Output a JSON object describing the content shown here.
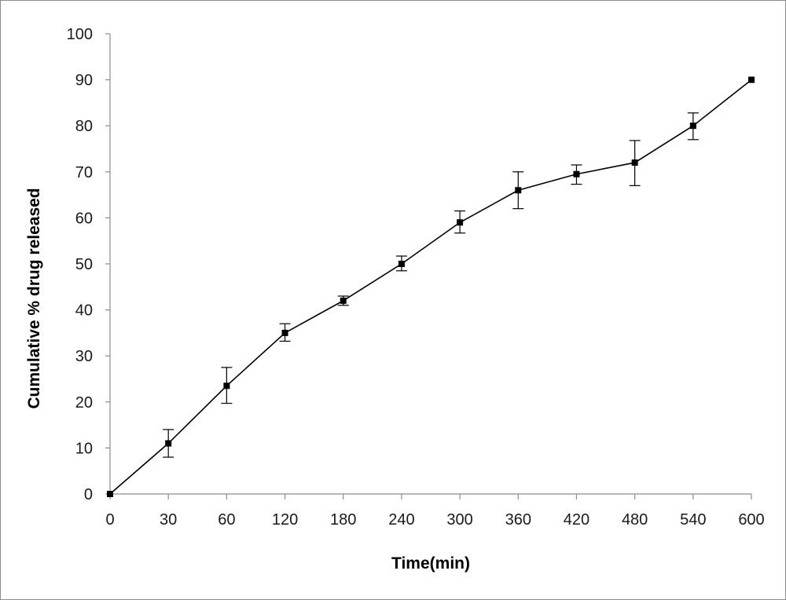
{
  "chart_data": {
    "type": "line",
    "title": "",
    "xlabel": "Time(min)",
    "ylabel": "Cumulative % drug released",
    "categories": [
      "0",
      "30",
      "60",
      "120",
      "180",
      "240",
      "300",
      "360",
      "420",
      "480",
      "540",
      "600"
    ],
    "y_ticks": [
      "0",
      "10",
      "20",
      "30",
      "40",
      "50",
      "60",
      "70",
      "80",
      "90",
      "100"
    ],
    "ylim": [
      0,
      100
    ],
    "grid": false,
    "legend": "none",
    "series": [
      {
        "values": [
          0,
          11,
          23.5,
          35,
          42,
          50,
          59,
          66,
          69.5,
          72,
          80,
          90
        ],
        "error_low": [
          0,
          8,
          19.7,
          33.2,
          41,
          48.5,
          56.7,
          62,
          67.3,
          67,
          77,
          90
        ],
        "error_high": [
          0,
          14,
          27.5,
          37,
          43,
          51.7,
          61.5,
          70,
          71.5,
          76.8,
          82.8,
          90
        ]
      }
    ],
    "colors": {
      "line": "#000000",
      "axis": "#8c8c8c",
      "marker": "#000000"
    }
  }
}
